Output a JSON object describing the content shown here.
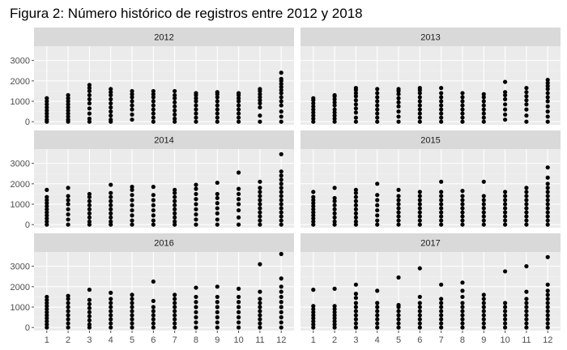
{
  "chart_data": {
    "type": "scatter",
    "title": "Figura 2: Número histórico de registros entre 2012 y 2018",
    "xlabel": "",
    "ylabel": "",
    "x_ticks": [
      "1",
      "2",
      "3",
      "4",
      "5",
      "6",
      "7",
      "8",
      "9",
      "10",
      "11",
      "12"
    ],
    "y_ticks": [
      0,
      1000,
      2000,
      3000
    ],
    "y_tick_labels": [
      "0",
      "1000",
      "2000",
      "3000"
    ],
    "ylim": [
      -150,
      3700
    ],
    "xlim": [
      0.4,
      12.6
    ],
    "grid": true,
    "legend": "none",
    "colors": {
      "panel_bg": "#ebebeb",
      "grid_major": "#ffffff",
      "grid_minor": "#f4f4f4",
      "strip_bg": "#d9d9d9",
      "point": "#000000",
      "tick": "#4d4d4d"
    },
    "panels": [
      {
        "label": "2012",
        "months": [
          {
            "x": 1,
            "y": [
              0,
              100,
              250,
              400,
              550,
              700,
              850,
              1000,
              1150
            ]
          },
          {
            "x": 2,
            "y": [
              0,
              100,
              250,
              400,
              550,
              700,
              850,
              1000,
              1150,
              1300
            ]
          },
          {
            "x": 3,
            "y": [
              0,
              150,
              400,
              650,
              900,
              1100,
              1300,
              1500,
              1650,
              1800
            ]
          },
          {
            "x": 4,
            "y": [
              0,
              100,
              300,
              500,
              700,
              900,
              1100,
              1300,
              1450,
              1600
            ]
          },
          {
            "x": 5,
            "y": [
              100,
              350,
              600,
              800,
              1000,
              1200,
              1350,
              1500
            ]
          },
          {
            "x": 6,
            "y": [
              0,
              200,
              400,
              600,
              800,
              1000,
              1200,
              1350,
              1500
            ]
          },
          {
            "x": 7,
            "y": [
              0,
              150,
              350,
              550,
              750,
              950,
              1150,
              1300,
              1500
            ]
          },
          {
            "x": 8,
            "y": [
              0,
              200,
              400,
              600,
              800,
              1000,
              1150,
              1300,
              1400
            ]
          },
          {
            "x": 9,
            "y": [
              0,
              200,
              400,
              600,
              800,
              1000,
              1200,
              1350,
              1450
            ]
          },
          {
            "x": 10,
            "y": [
              0,
              200,
              400,
              600,
              800,
              1000,
              1150,
              1300,
              1400
            ]
          },
          {
            "x": 11,
            "y": [
              0,
              300,
              700,
              900,
              1050,
              1200,
              1350,
              1500,
              1600
            ]
          },
          {
            "x": 12,
            "y": [
              0,
              250,
              500,
              800,
              1000,
              1200,
              1400,
              1550,
              1700,
              1850,
              2000,
              2100,
              2400
            ]
          }
        ]
      },
      {
        "label": "2013",
        "months": [
          {
            "x": 1,
            "y": [
              0,
              150,
              300,
              450,
              600,
              750,
              900,
              1050,
              1150
            ]
          },
          {
            "x": 2,
            "y": [
              0,
              150,
              300,
              450,
              600,
              800,
              950,
              1100,
              1250,
              1300
            ]
          },
          {
            "x": 3,
            "y": [
              0,
              200,
              450,
              650,
              850,
              1050,
              1250,
              1400,
              1550,
              1650
            ]
          },
          {
            "x": 4,
            "y": [
              0,
              200,
              400,
              600,
              800,
              1000,
              1200,
              1400,
              1600
            ]
          },
          {
            "x": 5,
            "y": [
              0,
              250,
              500,
              750,
              950,
              1150,
              1350,
              1500,
              1600
            ]
          },
          {
            "x": 6,
            "y": [
              0,
              200,
              400,
              600,
              800,
              1000,
              1200,
              1400,
              1550,
              1650
            ]
          },
          {
            "x": 7,
            "y": [
              0,
              200,
              400,
              600,
              800,
              1000,
              1200,
              1400,
              1650
            ]
          },
          {
            "x": 8,
            "y": [
              0,
              200,
              400,
              600,
              800,
              1000,
              1200,
              1400
            ]
          },
          {
            "x": 9,
            "y": [
              0,
              200,
              400,
              600,
              800,
              1000,
              1200,
              1350
            ]
          },
          {
            "x": 10,
            "y": [
              100,
              350,
              600,
              850,
              1100,
              1300,
              1450,
              1950
            ]
          },
          {
            "x": 11,
            "y": [
              0,
              300,
              600,
              850,
              1050,
              1250,
              1450,
              1650
            ]
          },
          {
            "x": 12,
            "y": [
              0,
              250,
              500,
              750,
              1000,
              1200,
              1400,
              1600,
              1750,
              1900,
              2050
            ]
          }
        ]
      },
      {
        "label": "2014",
        "months": [
          {
            "x": 1,
            "y": [
              0,
              150,
              300,
              450,
              600,
              750,
              900,
              1050,
              1200,
              1350,
              1700
            ]
          },
          {
            "x": 2,
            "y": [
              0,
              250,
              500,
              750,
              1000,
              1200,
              1400,
              1800
            ]
          },
          {
            "x": 3,
            "y": [
              0,
              150,
              350,
              550,
              750,
              950,
              1150,
              1350,
              1500
            ]
          },
          {
            "x": 4,
            "y": [
              0,
              150,
              350,
              550,
              750,
              950,
              1150,
              1350,
              1550,
              1950
            ]
          },
          {
            "x": 5,
            "y": [
              0,
              200,
              450,
              700,
              950,
              1200,
              1450,
              1700,
              1850
            ]
          },
          {
            "x": 6,
            "y": [
              0,
              200,
              450,
              700,
              950,
              1200,
              1450,
              1850
            ]
          },
          {
            "x": 7,
            "y": [
              0,
              150,
              350,
              550,
              750,
              950,
              1150,
              1350,
              1550,
              1700
            ]
          },
          {
            "x": 8,
            "y": [
              0,
              250,
              500,
              750,
              1000,
              1250,
              1500,
              1750,
              1950
            ]
          },
          {
            "x": 9,
            "y": [
              0,
              250,
              550,
              800,
              1050,
              1300,
              1500,
              2050
            ]
          },
          {
            "x": 10,
            "y": [
              0,
              350,
              700,
              1000,
              1250,
              1500,
              1750,
              2550
            ]
          },
          {
            "x": 11,
            "y": [
              0,
              200,
              400,
              600,
              800,
              1000,
              1200,
              1400,
              1600,
              1800,
              2100
            ]
          },
          {
            "x": 12,
            "y": [
              0,
              200,
              400,
              600,
              800,
              1000,
              1200,
              1400,
              1600,
              1800,
              2000,
              2200,
              2400,
              2600,
              3450
            ]
          }
        ]
      },
      {
        "label": "2015",
        "months": [
          {
            "x": 1,
            "y": [
              0,
              150,
              300,
              450,
              600,
              750,
              900,
              1050,
              1200,
              1350,
              1600
            ]
          },
          {
            "x": 2,
            "y": [
              0,
              150,
              350,
              550,
              750,
              950,
              1150,
              1300,
              1800
            ]
          },
          {
            "x": 3,
            "y": [
              0,
              150,
              350,
              550,
              750,
              950,
              1150,
              1350,
              1550,
              1700
            ]
          },
          {
            "x": 4,
            "y": [
              0,
              200,
              450,
              700,
              950,
              1200,
              1450,
              2000
            ]
          },
          {
            "x": 5,
            "y": [
              0,
              200,
              400,
              600,
              800,
              1000,
              1200,
              1400,
              1700
            ]
          },
          {
            "x": 6,
            "y": [
              0,
              200,
              400,
              600,
              800,
              1000,
              1200,
              1400,
              1600
            ]
          },
          {
            "x": 7,
            "y": [
              0,
              200,
              400,
              600,
              800,
              1000,
              1200,
              1400,
              1600,
              2100
            ]
          },
          {
            "x": 8,
            "y": [
              0,
              200,
              400,
              600,
              800,
              1000,
              1200,
              1400,
              1650
            ]
          },
          {
            "x": 9,
            "y": [
              0,
              200,
              400,
              600,
              800,
              1000,
              1200,
              1400,
              2100
            ]
          },
          {
            "x": 10,
            "y": [
              0,
              200,
              400,
              600,
              800,
              1000,
              1200,
              1400,
              1600
            ]
          },
          {
            "x": 11,
            "y": [
              0,
              200,
              400,
              600,
              800,
              1000,
              1200,
              1400,
              1600,
              1800
            ]
          },
          {
            "x": 12,
            "y": [
              0,
              200,
              400,
              600,
              800,
              1000,
              1200,
              1400,
              1600,
              1800,
              2000,
              2300,
              2800
            ]
          }
        ]
      },
      {
        "label": "2016",
        "months": [
          {
            "x": 1,
            "y": [
              0,
              150,
              300,
              450,
              600,
              750,
              900,
              1050,
              1200,
              1350,
              1500
            ]
          },
          {
            "x": 2,
            "y": [
              0,
              200,
              400,
              600,
              800,
              1000,
              1200,
              1400,
              1550
            ]
          },
          {
            "x": 3,
            "y": [
              0,
              150,
              350,
              550,
              750,
              950,
              1150,
              1350,
              1850
            ]
          },
          {
            "x": 4,
            "y": [
              0,
              200,
              400,
              600,
              800,
              1000,
              1200,
              1400,
              1700
            ]
          },
          {
            "x": 5,
            "y": [
              0,
              200,
              400,
              600,
              800,
              1000,
              1200,
              1400,
              1600
            ]
          },
          {
            "x": 6,
            "y": [
              0,
              200,
              400,
              600,
              800,
              1000,
              1300,
              2250
            ]
          },
          {
            "x": 7,
            "y": [
              0,
              200,
              400,
              600,
              800,
              1000,
              1200,
              1400,
              1600
            ]
          },
          {
            "x": 8,
            "y": [
              0,
              250,
              500,
              750,
              1000,
              1250,
              1500,
              1950
            ]
          },
          {
            "x": 9,
            "y": [
              0,
              250,
              500,
              750,
              1000,
              1250,
              1500,
              2000
            ]
          },
          {
            "x": 10,
            "y": [
              0,
              250,
              500,
              750,
              1000,
              1250,
              1500,
              1900
            ]
          },
          {
            "x": 11,
            "y": [
              0,
              200,
              400,
              600,
              800,
              1000,
              1200,
              1400,
              1750,
              3100
            ]
          },
          {
            "x": 12,
            "y": [
              0,
              250,
              500,
              750,
              1000,
              1250,
              1500,
              1750,
              2000,
              2400,
              3600
            ]
          }
        ]
      },
      {
        "label": "2017",
        "months": [
          {
            "x": 1,
            "y": [
              0,
              150,
              300,
              450,
              600,
              750,
              900,
              1050,
              1850
            ]
          },
          {
            "x": 2,
            "y": [
              0,
              150,
              300,
              450,
              600,
              750,
              900,
              1050,
              1900
            ]
          },
          {
            "x": 3,
            "y": [
              0,
              200,
              400,
              600,
              800,
              1000,
              1200,
              1450,
              1650,
              2100
            ]
          },
          {
            "x": 4,
            "y": [
              0,
              200,
              400,
              600,
              800,
              1000,
              1200,
              1800
            ]
          },
          {
            "x": 5,
            "y": [
              0,
              200,
              400,
              600,
              800,
              1000,
              1100,
              2450
            ]
          },
          {
            "x": 6,
            "y": [
              0,
              200,
              400,
              600,
              800,
              1000,
              1200,
              1500,
              2900
            ]
          },
          {
            "x": 7,
            "y": [
              0,
              200,
              400,
              600,
              800,
              1000,
              1200,
              1400,
              2100
            ]
          },
          {
            "x": 8,
            "y": [
              0,
              200,
              400,
              600,
              800,
              1000,
              1200,
              1500,
              1800,
              2200
            ]
          },
          {
            "x": 9,
            "y": [
              0,
              200,
              400,
              600,
              800,
              1000,
              1200,
              1400,
              1600
            ]
          },
          {
            "x": 10,
            "y": [
              0,
              200,
              400,
              600,
              800,
              1000,
              1200,
              2750
            ]
          },
          {
            "x": 11,
            "y": [
              0,
              200,
              400,
              600,
              800,
              1000,
              1200,
              1400,
              1750,
              3000
            ]
          },
          {
            "x": 12,
            "y": [
              0,
              200,
              400,
              600,
              800,
              1000,
              1200,
              1400,
              1600,
              1800,
              2100,
              3450
            ]
          }
        ]
      }
    ]
  }
}
